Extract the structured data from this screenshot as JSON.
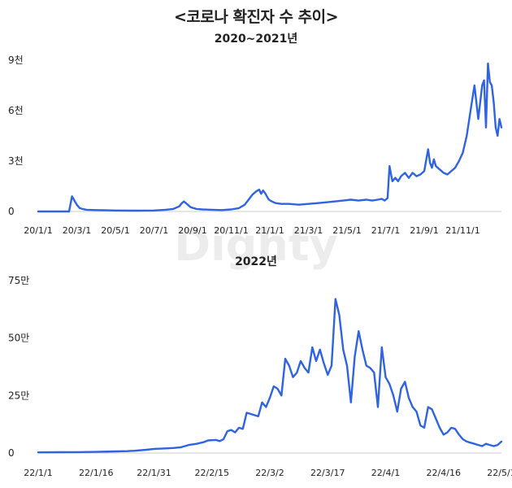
{
  "title": "<코로나 확진자 수 추이>",
  "watermark": "Dighty",
  "colors": {
    "line": "#2f63e0",
    "axis": "#cccccc",
    "text": "#222222",
    "watermark": "#ececec"
  },
  "chart_data": [
    {
      "type": "line",
      "title": "2020~2021년",
      "x_unit": "month index from 2020-01 (0 = 20/1/1, 24 = 22/1/1)",
      "y_unit": "daily confirmed cases",
      "ylim": [
        0,
        9000
      ],
      "xlim": [
        0,
        24
      ],
      "yticks": [
        {
          "value": 0,
          "label": "0"
        },
        {
          "value": 3000,
          "label": "3천"
        },
        {
          "value": 6000,
          "label": "6천"
        },
        {
          "value": 9000,
          "label": "9천"
        }
      ],
      "xticks": [
        {
          "value": 0,
          "label": "20/1/1"
        },
        {
          "value": 2,
          "label": "20/3/1"
        },
        {
          "value": 4,
          "label": "20/5/1"
        },
        {
          "value": 6,
          "label": "20/7/1"
        },
        {
          "value": 8,
          "label": "20/9/1"
        },
        {
          "value": 10,
          "label": "20/11/1"
        },
        {
          "value": 12,
          "label": "21/1/1"
        },
        {
          "value": 14,
          "label": "21/3/1"
        },
        {
          "value": 16,
          "label": "21/5/1"
        },
        {
          "value": 18,
          "label": "21/7/1"
        },
        {
          "value": 20,
          "label": "21/9/1"
        },
        {
          "value": 22,
          "label": "21/11/1"
        }
      ],
      "x": [
        0,
        1.6,
        1.75,
        1.9,
        2.0,
        2.15,
        2.3,
        2.5,
        3,
        4,
        5,
        6,
        6.6,
        7,
        7.3,
        7.45,
        7.55,
        7.7,
        7.9,
        8.2,
        8.5,
        9,
        9.5,
        10.0,
        10.4,
        10.7,
        10.9,
        11.1,
        11.3,
        11.45,
        11.55,
        11.65,
        11.75,
        11.85,
        11.95,
        12.1,
        12.3,
        12.6,
        13,
        13.5,
        14,
        14.5,
        15,
        15.4,
        15.8,
        16.2,
        16.6,
        17,
        17.3,
        17.6,
        17.8,
        17.95,
        18.1,
        18.2,
        18.35,
        18.5,
        18.65,
        18.8,
        19,
        19.2,
        19.4,
        19.6,
        19.8,
        20,
        20.2,
        20.3,
        20.4,
        20.5,
        20.6,
        20.8,
        21,
        21.2,
        21.4,
        21.6,
        21.8,
        22,
        22.2,
        22.4,
        22.6,
        22.8,
        23,
        23.1,
        23.2,
        23.3,
        23.4,
        23.5,
        23.6,
        23.7,
        23.8,
        23.9,
        24
      ],
      "y": [
        0,
        0,
        900,
        600,
        400,
        200,
        150,
        100,
        80,
        60,
        50,
        60,
        100,
        150,
        300,
        500,
        600,
        450,
        250,
        150,
        120,
        100,
        80,
        120,
        200,
        400,
        700,
        1000,
        1200,
        1300,
        1050,
        1250,
        1100,
        900,
        700,
        600,
        500,
        450,
        450,
        400,
        450,
        500,
        550,
        600,
        650,
        700,
        650,
        700,
        650,
        700,
        750,
        650,
        800,
        2700,
        1800,
        2000,
        1800,
        2100,
        2300,
        2000,
        2300,
        2100,
        2200,
        2400,
        3700,
        2900,
        2600,
        3100,
        2700,
        2500,
        2300,
        2200,
        2400,
        2600,
        3000,
        3500,
        4500,
        6000,
        7500,
        5500,
        7500,
        7800,
        5000,
        8800,
        7700,
        7500,
        6500,
        5000,
        4500,
        5500,
        5000
      ]
    },
    {
      "type": "line",
      "title": "2022년",
      "x_unit": "days since 22/1/1",
      "y_unit": "daily confirmed cases",
      "ylim": [
        0,
        750000
      ],
      "xlim": [
        0,
        120
      ],
      "yticks": [
        {
          "value": 0,
          "label": "0"
        },
        {
          "value": 250000,
          "label": "25만"
        },
        {
          "value": 500000,
          "label": "50만"
        },
        {
          "value": 750000,
          "label": "75만"
        }
      ],
      "xticks": [
        {
          "value": 0,
          "label": "22/1/1"
        },
        {
          "value": 15,
          "label": "22/1/16"
        },
        {
          "value": 30,
          "label": "22/1/31"
        },
        {
          "value": 45,
          "label": "22/2/15"
        },
        {
          "value": 60,
          "label": "22/3/2"
        },
        {
          "value": 75,
          "label": "22/3/17"
        },
        {
          "value": 90,
          "label": "22/4/1"
        },
        {
          "value": 105,
          "label": "22/4/16"
        },
        {
          "value": 120,
          "label": "22/5/1"
        }
      ],
      "x": [
        0,
        5,
        10,
        15,
        20,
        23,
        25,
        28,
        30,
        33,
        35,
        37,
        39,
        41,
        43,
        44,
        46,
        47,
        48,
        49,
        50,
        51,
        52,
        53,
        54,
        55,
        56,
        57,
        58,
        59,
        60,
        61,
        62,
        63,
        64,
        65,
        66,
        67,
        68,
        69,
        70,
        71,
        72,
        73,
        74,
        75,
        76,
        77,
        78,
        79,
        80,
        81,
        82,
        83,
        84,
        85,
        86,
        87,
        88,
        89,
        90,
        91,
        92,
        93,
        94,
        95,
        96,
        97,
        98,
        99,
        100,
        101,
        102,
        103,
        104,
        105,
        106,
        107,
        108,
        109,
        110,
        111,
        112,
        113,
        114,
        115,
        116,
        117,
        118,
        119,
        120
      ],
      "y": [
        3000,
        3500,
        4000,
        5000,
        7000,
        8000,
        10000,
        14000,
        18000,
        20000,
        22000,
        25000,
        35000,
        40000,
        48000,
        55000,
        57000,
        52000,
        60000,
        95000,
        100000,
        90000,
        110000,
        105000,
        175000,
        170000,
        165000,
        160000,
        220000,
        200000,
        240000,
        290000,
        280000,
        250000,
        410000,
        380000,
        330000,
        350000,
        400000,
        370000,
        350000,
        460000,
        400000,
        450000,
        390000,
        340000,
        380000,
        670000,
        600000,
        450000,
        380000,
        220000,
        420000,
        530000,
        450000,
        380000,
        370000,
        350000,
        200000,
        460000,
        330000,
        300000,
        250000,
        180000,
        280000,
        310000,
        240000,
        200000,
        180000,
        120000,
        110000,
        200000,
        190000,
        150000,
        110000,
        80000,
        90000,
        110000,
        105000,
        80000,
        60000,
        50000,
        45000,
        40000,
        35000,
        30000,
        40000,
        35000,
        30000,
        35000,
        50000
      ]
    }
  ]
}
